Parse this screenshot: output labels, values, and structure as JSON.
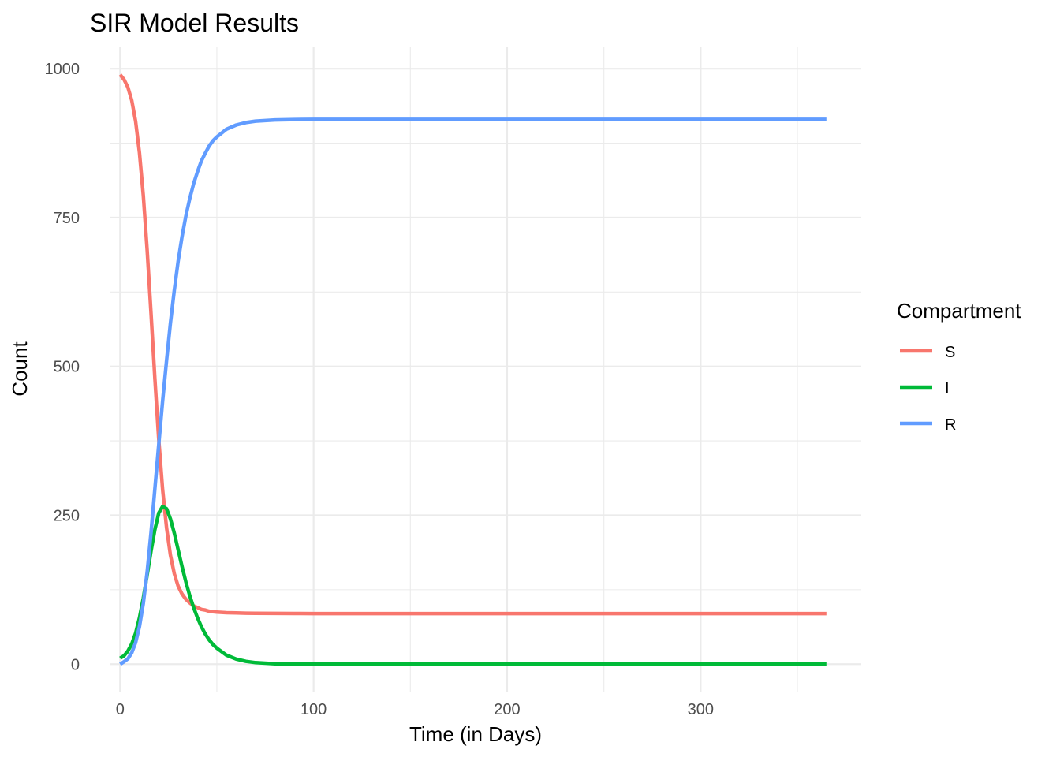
{
  "chart_data": {
    "type": "line",
    "title": "SIR Model Results",
    "xlabel": "Time (in Days)",
    "ylabel": "Count",
    "xlim": [
      -5,
      383
    ],
    "ylim": [
      -46,
      1036
    ],
    "x_ticks": [
      0,
      100,
      200,
      300
    ],
    "y_ticks": [
      0,
      250,
      500,
      750,
      1000
    ],
    "x_minor": [
      50,
      150,
      250,
      350
    ],
    "y_minor": [
      125,
      375,
      625,
      875
    ],
    "grid": true,
    "legend": {
      "title": "Compartment",
      "position": "right"
    },
    "x": [
      0,
      2,
      4,
      6,
      8,
      10,
      12,
      14,
      16,
      18,
      20,
      22,
      24,
      26,
      28,
      30,
      32,
      34,
      36,
      38,
      40,
      42,
      44,
      46,
      48,
      50,
      55,
      60,
      65,
      70,
      80,
      90,
      100,
      120,
      150,
      200,
      250,
      300,
      350,
      365
    ],
    "series": [
      {
        "name": "S",
        "color": "#F8766D",
        "values": [
          990,
          982,
          969,
          947,
          912,
          859,
          787,
          695,
          589,
          479,
          377,
          293,
          229,
          183,
          152,
          131,
          118,
          109,
          103,
          98,
          95,
          92,
          91,
          89,
          88,
          87.5,
          86.5,
          86,
          85.6,
          85.4,
          85.2,
          85.1,
          85,
          85,
          85,
          85,
          85,
          85,
          85,
          85
        ]
      },
      {
        "name": "I",
        "color": "#00BA38",
        "values": [
          10,
          14,
          22,
          34,
          52,
          78,
          111,
          150,
          190,
          226,
          254,
          265,
          261,
          244,
          220,
          192,
          164,
          138,
          115,
          95,
          78,
          63,
          51,
          41,
          33,
          27,
          15,
          8.5,
          4.7,
          2.6,
          0.8,
          0.2,
          0.1,
          0,
          0,
          0,
          0,
          0,
          0,
          0
        ]
      },
      {
        "name": "R",
        "color": "#619CFF",
        "values": [
          0,
          4,
          9,
          19,
          36,
          63,
          102,
          155,
          221,
          295,
          369,
          442,
          510,
          573,
          628,
          677,
          718,
          753,
          782,
          807,
          827,
          845,
          858,
          870,
          879,
          885.5,
          898.5,
          905.5,
          909.7,
          912,
          914,
          914.7,
          914.9,
          915,
          915,
          915,
          915,
          915,
          915,
          915
        ]
      }
    ]
  }
}
